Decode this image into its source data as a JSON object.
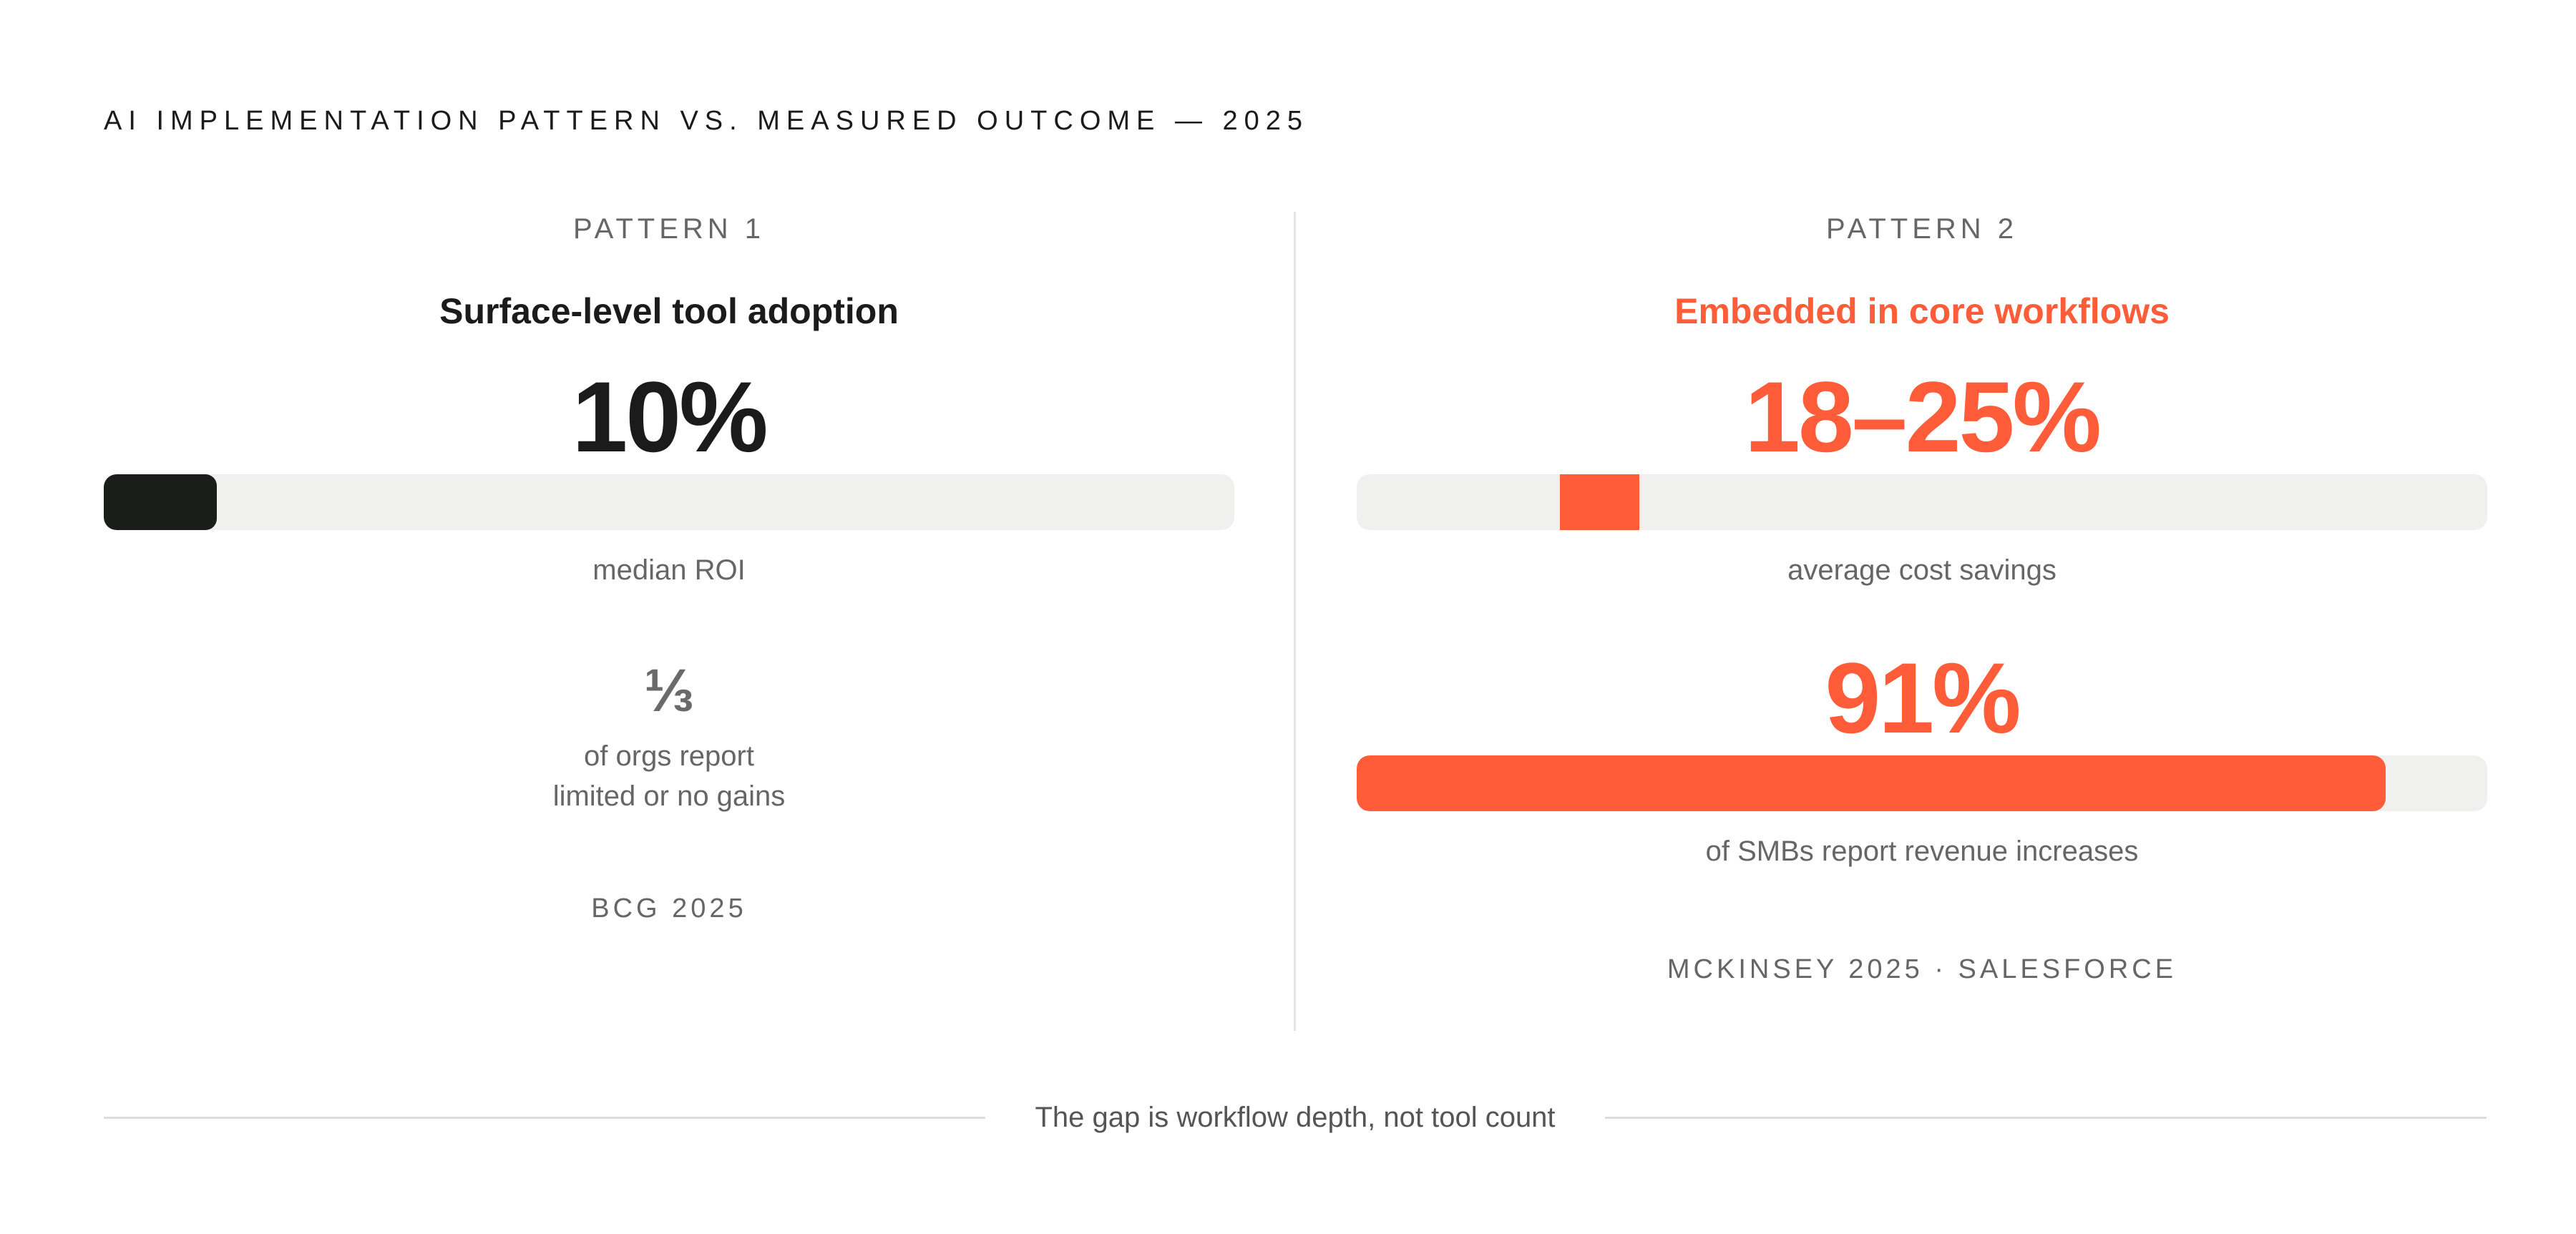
{
  "title": "AI IMPLEMENTATION PATTERN VS. MEASURED OUTCOME — 2025",
  "colors": {
    "accent": "#ff5c39",
    "dark": "#1b1d1b",
    "track": "#f0f0ee"
  },
  "chart_data": {
    "type": "bar",
    "patterns": [
      {
        "label": "PATTERN 1",
        "title": "Surface-level tool adoption",
        "metrics": [
          {
            "value_text": "10%",
            "value": 10,
            "range": [
              0,
              10
            ],
            "caption": "median ROI",
            "color": "#1b1d1b"
          }
        ],
        "secondary": {
          "value_text": "⅓",
          "caption": "of orgs report\nlimited or no gains"
        },
        "source": "BCG 2025"
      },
      {
        "label": "PATTERN 2",
        "title": "Embedded in core workflows",
        "metrics": [
          {
            "value_text": "18–25%",
            "value": 25,
            "range": [
              18,
              25
            ],
            "caption": "average cost savings",
            "color": "#ff5c39"
          },
          {
            "value_text": "91%",
            "value": 91,
            "range": [
              0,
              91
            ],
            "caption": "of SMBs report revenue increases",
            "color": "#ff5c39"
          }
        ],
        "source": "MCKINSEY 2025 · SALESFORCE"
      }
    ],
    "xlim": [
      0,
      100
    ],
    "footnote": "The gap is workflow depth, not tool count"
  }
}
